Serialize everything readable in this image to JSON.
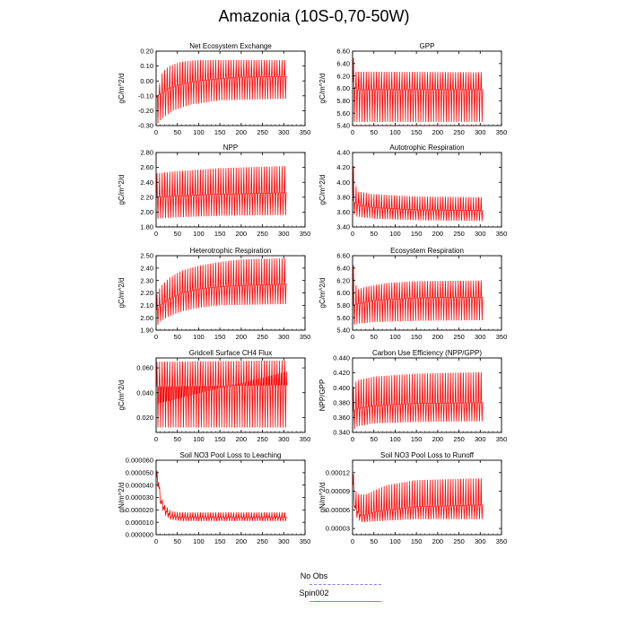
{
  "title": "Amazonia (10S-0,70-50W)",
  "legend": {
    "entries": [
      {
        "label": "No Obs",
        "color": "#8080ff",
        "style": "dashed"
      },
      {
        "label": "Spin002",
        "color": "#ff0000",
        "style": "solid"
      }
    ]
  },
  "chart_data": [
    {
      "type": "line",
      "title": "Net Ecosystem Exchange",
      "ylabel": "gC/m^2/d",
      "xlim": [
        0,
        350
      ],
      "ylim": [
        -0.3,
        0.2
      ],
      "xticks": [
        "0",
        "50",
        "100",
        "150",
        "200",
        "250",
        "300",
        "350"
      ],
      "yticks": [
        "-0.30",
        "-0.20",
        "-0.10",
        "0.00",
        "0.10",
        "0.20"
      ],
      "series": [
        {
          "name": "Spin002",
          "color": "#ff0000",
          "x_range": [
            1,
            307
          ],
          "cycles": 51,
          "upper": [
            [
              1,
              -0.13
            ],
            [
              8,
              -0.02
            ],
            [
              15,
              0.06
            ],
            [
              30,
              0.1
            ],
            [
              60,
              0.13
            ],
            [
              100,
              0.14
            ],
            [
              150,
              0.14
            ],
            [
              307,
              0.14
            ]
          ],
          "lower": [
            [
              1,
              -0.3
            ],
            [
              8,
              -0.27
            ],
            [
              20,
              -0.24
            ],
            [
              40,
              -0.2
            ],
            [
              80,
              -0.16
            ],
            [
              150,
              -0.13
            ],
            [
              307,
              -0.12
            ]
          ],
          "mean": [
            [
              1,
              -0.1
            ],
            [
              10,
              -0.09
            ],
            [
              30,
              -0.05
            ],
            [
              60,
              -0.02
            ],
            [
              100,
              0.0
            ],
            [
              150,
              0.015
            ],
            [
              200,
              0.025
            ],
            [
              307,
              0.03
            ]
          ]
        }
      ]
    },
    {
      "type": "line",
      "title": "GPP",
      "ylabel": "gC/m^2/d",
      "xlim": [
        0,
        350
      ],
      "ylim": [
        5.4,
        6.6
      ],
      "xticks": [
        "0",
        "50",
        "100",
        "150",
        "200",
        "250",
        "300",
        "350"
      ],
      "yticks": [
        "5.40",
        "5.60",
        "5.80",
        "6.00",
        "6.20",
        "6.40",
        "6.60"
      ],
      "series": [
        {
          "name": "Spin002",
          "color": "#ff0000",
          "x_range": [
            1,
            307
          ],
          "cycles": 51,
          "upper": [
            [
              1,
              6.55
            ],
            [
              4,
              6.4
            ],
            [
              8,
              6.27
            ],
            [
              307,
              6.26
            ]
          ],
          "lower": [
            [
              1,
              5.46
            ],
            [
              8,
              5.46
            ],
            [
              307,
              5.46
            ]
          ],
          "mean": [
            [
              1,
              6.1
            ],
            [
              8,
              5.98
            ],
            [
              307,
              5.98
            ]
          ]
        }
      ]
    },
    {
      "type": "line",
      "title": "NPP",
      "ylabel": "gC/m^2/d",
      "xlim": [
        0,
        350
      ],
      "ylim": [
        1.8,
        2.8
      ],
      "xticks": [
        "0",
        "50",
        "100",
        "150",
        "200",
        "250",
        "300",
        "350"
      ],
      "yticks": [
        "1.80",
        "2.00",
        "2.20",
        "2.40",
        "2.60",
        "2.80"
      ],
      "series": [
        {
          "name": "Spin002",
          "color": "#ff0000",
          "x_range": [
            1,
            307
          ],
          "cycles": 51,
          "upper": [
            [
              1,
              2.52
            ],
            [
              50,
              2.55
            ],
            [
              150,
              2.59
            ],
            [
              307,
              2.62
            ]
          ],
          "lower": [
            [
              1,
              1.91
            ],
            [
              50,
              1.93
            ],
            [
              150,
              1.95
            ],
            [
              307,
              1.96
            ]
          ],
          "mean": [
            [
              1,
              2.2
            ],
            [
              50,
              2.22
            ],
            [
              150,
              2.24
            ],
            [
              307,
              2.26
            ]
          ]
        }
      ]
    },
    {
      "type": "line",
      "title": "Autotrophic Respiration",
      "ylabel": "gC/m^2/d",
      "xlim": [
        0,
        350
      ],
      "ylim": [
        3.4,
        4.4
      ],
      "xticks": [
        "0",
        "50",
        "100",
        "150",
        "200",
        "250",
        "300",
        "350"
      ],
      "yticks": [
        "3.40",
        "3.60",
        "3.80",
        "4.00",
        "4.20",
        "4.40"
      ],
      "series": [
        {
          "name": "Spin002",
          "color": "#ff0000",
          "x_range": [
            1,
            307
          ],
          "cycles": 51,
          "upper": [
            [
              1,
              4.3
            ],
            [
              4,
              4.1
            ],
            [
              10,
              3.88
            ],
            [
              50,
              3.84
            ],
            [
              150,
              3.81
            ],
            [
              307,
              3.8
            ]
          ],
          "lower": [
            [
              1,
              3.58
            ],
            [
              10,
              3.54
            ],
            [
              50,
              3.51
            ],
            [
              150,
              3.49
            ],
            [
              307,
              3.48
            ]
          ],
          "mean": [
            [
              1,
              3.75
            ],
            [
              10,
              3.7
            ],
            [
              50,
              3.66
            ],
            [
              150,
              3.63
            ],
            [
              307,
              3.62
            ]
          ]
        }
      ]
    },
    {
      "type": "line",
      "title": "Heterotrophic Respiration",
      "ylabel": "gC/m^2/d",
      "xlim": [
        0,
        350
      ],
      "ylim": [
        1.9,
        2.5
      ],
      "xticks": [
        "0",
        "50",
        "100",
        "150",
        "200",
        "250",
        "300",
        "350"
      ],
      "yticks": [
        "1.90",
        "2.00",
        "2.10",
        "2.20",
        "2.30",
        "2.40",
        "2.50"
      ],
      "series": [
        {
          "name": "Spin002",
          "color": "#ff0000",
          "x_range": [
            1,
            307
          ],
          "cycles": 51,
          "upper": [
            [
              1,
              2.18
            ],
            [
              10,
              2.25
            ],
            [
              30,
              2.32
            ],
            [
              60,
              2.38
            ],
            [
              100,
              2.42
            ],
            [
              150,
              2.45
            ],
            [
              200,
              2.47
            ],
            [
              307,
              2.48
            ]
          ],
          "lower": [
            [
              1,
              1.93
            ],
            [
              10,
              1.97
            ],
            [
              30,
              2.01
            ],
            [
              60,
              2.05
            ],
            [
              100,
              2.08
            ],
            [
              150,
              2.1
            ],
            [
              307,
              2.11
            ]
          ],
          "mean": [
            [
              1,
              2.06
            ],
            [
              10,
              2.1
            ],
            [
              30,
              2.15
            ],
            [
              60,
              2.2
            ],
            [
              100,
              2.23
            ],
            [
              150,
              2.25
            ],
            [
              200,
              2.26
            ],
            [
              307,
              2.27
            ]
          ]
        }
      ]
    },
    {
      "type": "line",
      "title": "Ecosystem Respiration",
      "ylabel": "gC/m^2/d",
      "xlim": [
        0,
        350
      ],
      "ylim": [
        5.4,
        6.6
      ],
      "xticks": [
        "0",
        "50",
        "100",
        "150",
        "200",
        "250",
        "300",
        "350"
      ],
      "yticks": [
        "5.40",
        "5.60",
        "5.80",
        "6.00",
        "6.20",
        "6.40",
        "6.60"
      ],
      "series": [
        {
          "name": "Spin002",
          "color": "#ff0000",
          "x_range": [
            1,
            307
          ],
          "cycles": 51,
          "upper": [
            [
              1,
              6.55
            ],
            [
              4,
              6.3
            ],
            [
              10,
              6.05
            ],
            [
              30,
              6.1
            ],
            [
              80,
              6.16
            ],
            [
              150,
              6.19
            ],
            [
              307,
              6.2
            ]
          ],
          "lower": [
            [
              1,
              5.48
            ],
            [
              10,
              5.5
            ],
            [
              50,
              5.53
            ],
            [
              150,
              5.55
            ],
            [
              307,
              5.56
            ]
          ],
          "mean": [
            [
              1,
              5.8
            ],
            [
              10,
              5.82
            ],
            [
              50,
              5.88
            ],
            [
              150,
              5.92
            ],
            [
              307,
              5.93
            ]
          ]
        }
      ]
    },
    {
      "type": "line",
      "title": "Gridcell Surface CH4 Flux",
      "ylabel": "gC/m^2/d",
      "xlim": [
        0,
        350
      ],
      "ylim": [
        0.008,
        0.068
      ],
      "xticks": [
        "0",
        "50",
        "100",
        "150",
        "200",
        "250",
        "300",
        "350"
      ],
      "yticks": [
        "0.020",
        "0.040",
        "0.060"
      ],
      "series": [
        {
          "name": "Spin002",
          "color": "#ff0000",
          "x_range": [
            1,
            307
          ],
          "cycles": 51,
          "upper": [
            [
              1,
              0.065
            ],
            [
              307,
              0.066
            ]
          ],
          "lower": [
            [
              1,
              0.012
            ],
            [
              307,
              0.012
            ]
          ],
          "mean": [
            [
              1,
              0.045
            ],
            [
              307,
              0.046
            ]
          ],
          "band": [
            [
              1,
              0.031
            ],
            [
              307,
              0.057
            ]
          ]
        }
      ]
    },
    {
      "type": "line",
      "title": "Carbon Use Efficiency (NPP/GPP)",
      "ylabel": "NPP/GPP",
      "xlim": [
        0,
        350
      ],
      "ylim": [
        0.34,
        0.44
      ],
      "xticks": [
        "0",
        "50",
        "100",
        "150",
        "200",
        "250",
        "300",
        "350"
      ],
      "yticks": [
        "0.340",
        "0.360",
        "0.380",
        "0.400",
        "0.420",
        "0.440"
      ],
      "series": [
        {
          "name": "Spin002",
          "color": "#ff0000",
          "x_range": [
            1,
            307
          ],
          "cycles": 51,
          "upper": [
            [
              1,
              0.4
            ],
            [
              10,
              0.41
            ],
            [
              50,
              0.415
            ],
            [
              150,
              0.419
            ],
            [
              307,
              0.421
            ]
          ],
          "lower": [
            [
              1,
              0.342
            ],
            [
              10,
              0.348
            ],
            [
              50,
              0.352
            ],
            [
              150,
              0.354
            ],
            [
              307,
              0.355
            ]
          ],
          "mean": [
            [
              1,
              0.368
            ],
            [
              10,
              0.372
            ],
            [
              50,
              0.376
            ],
            [
              150,
              0.379
            ],
            [
              307,
              0.38
            ]
          ]
        }
      ]
    },
    {
      "type": "line",
      "title": "Soil NO3 Pool Loss to Leaching",
      "ylabel": "gN/m^2/d",
      "xlim": [
        0,
        350
      ],
      "ylim": [
        0,
        6e-05
      ],
      "xticks": [
        "0",
        "50",
        "100",
        "150",
        "200",
        "250",
        "300",
        "350"
      ],
      "yticks": [
        "0.000000",
        "0.000010",
        "0.000020",
        "0.000030",
        "0.000040",
        "0.000050",
        "0.000060"
      ],
      "series": [
        {
          "name": "Spin002",
          "color": "#ff0000",
          "x_range": [
            1,
            307
          ],
          "cycles": 51,
          "upper": [
            [
              1,
              5.2e-05
            ],
            [
              5,
              5e-05
            ],
            [
              10,
              3.2e-05
            ],
            [
              20,
              2.4e-05
            ],
            [
              35,
              1.9e-05
            ],
            [
              60,
              1.8e-05
            ],
            [
              307,
              1.8e-05
            ]
          ],
          "lower": [
            [
              1,
              4e-05
            ],
            [
              5,
              3.8e-05
            ],
            [
              10,
              2.5e-05
            ],
            [
              20,
              1.6e-05
            ],
            [
              35,
              1.2e-05
            ],
            [
              60,
              1.1e-05
            ],
            [
              307,
              1.1e-05
            ]
          ],
          "mean": [
            [
              1,
              4.6e-05
            ],
            [
              5,
              4.4e-05
            ],
            [
              10,
              2.8e-05
            ],
            [
              20,
              2e-05
            ],
            [
              35,
              1.5e-05
            ],
            [
              60,
              1.4e-05
            ],
            [
              307,
              1.4e-05
            ]
          ]
        }
      ]
    },
    {
      "type": "line",
      "title": "Soil NO3 Pool Loss to Runoff",
      "ylabel": "gN/m^2/d",
      "xlim": [
        0,
        350
      ],
      "ylim": [
        2e-05,
        0.00014
      ],
      "xticks": [
        "0",
        "50",
        "100",
        "150",
        "200",
        "250",
        "300",
        "350"
      ],
      "yticks": [
        "0.00003",
        "0.00006",
        "0.00009",
        "0.00012"
      ],
      "series": [
        {
          "name": "Spin002",
          "color": "#ff0000",
          "x_range": [
            1,
            307
          ],
          "cycles": 51,
          "upper": [
            [
              1,
              0.00013
            ],
            [
              4,
              0.0001
            ],
            [
              10,
              8.5e-05
            ],
            [
              30,
              8.5e-05
            ],
            [
              80,
              0.0001
            ],
            [
              150,
              0.000108
            ],
            [
              307,
              0.000111
            ]
          ],
          "lower": [
            [
              1,
              9e-05
            ],
            [
              6,
              5e-05
            ],
            [
              20,
              4e-05
            ],
            [
              60,
              4.2e-05
            ],
            [
              150,
              4.5e-05
            ],
            [
              307,
              4.5e-05
            ]
          ],
          "mean": [
            [
              1,
              0.0001
            ],
            [
              6,
              6.2e-05
            ],
            [
              20,
              5e-05
            ],
            [
              60,
              5.8e-05
            ],
            [
              150,
              6.5e-05
            ],
            [
              307,
              6.8e-05
            ]
          ]
        }
      ]
    }
  ]
}
